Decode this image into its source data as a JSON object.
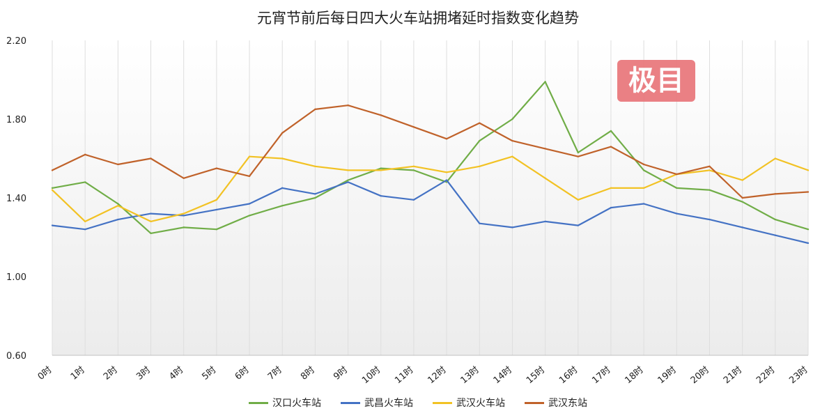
{
  "chart_data": {
    "type": "line",
    "title": "元宵节前后每日四大火车站拥堵延时指数变化趋势",
    "xlabel": "",
    "ylabel": "",
    "categories": [
      "0时",
      "1时",
      "2时",
      "3时",
      "4时",
      "5时",
      "6时",
      "7时",
      "8时",
      "9时",
      "10时",
      "11时",
      "12时",
      "13时",
      "14时",
      "15时",
      "16时",
      "17时",
      "18时",
      "19时",
      "20时",
      "21时",
      "22时",
      "23时"
    ],
    "ylim": [
      0.6,
      2.2
    ],
    "yticks": [
      "0.60",
      "1.00",
      "1.40",
      "1.80",
      "2.20"
    ],
    "grid": "vertical",
    "legend_position": "bottom",
    "series": [
      {
        "name": "汉口火车站",
        "color": "#70ad47",
        "values": [
          1.45,
          1.48,
          1.37,
          1.22,
          1.25,
          1.24,
          1.31,
          1.36,
          1.4,
          1.49,
          1.55,
          1.54,
          1.48,
          1.69,
          1.8,
          1.99,
          1.63,
          1.74,
          1.54,
          1.45,
          1.44,
          1.38,
          1.29,
          1.24
        ]
      },
      {
        "name": "武昌火车站",
        "color": "#4472c4",
        "values": [
          1.26,
          1.24,
          1.29,
          1.32,
          1.31,
          1.34,
          1.37,
          1.45,
          1.42,
          1.48,
          1.41,
          1.39,
          1.49,
          1.27,
          1.25,
          1.28,
          1.26,
          1.35,
          1.37,
          1.32,
          1.29,
          1.25,
          1.21,
          1.17
        ]
      },
      {
        "name": "武汉火车站",
        "color": "#f2c224",
        "values": [
          1.44,
          1.28,
          1.36,
          1.28,
          1.32,
          1.39,
          1.61,
          1.6,
          1.56,
          1.54,
          1.54,
          1.56,
          1.53,
          1.56,
          1.61,
          1.5,
          1.39,
          1.45,
          1.45,
          1.52,
          1.54,
          1.49,
          1.6,
          1.54
        ]
      },
      {
        "name": "武汉东站",
        "color": "#c0622a",
        "values": [
          1.54,
          1.62,
          1.57,
          1.6,
          1.5,
          1.55,
          1.51,
          1.73,
          1.85,
          1.87,
          1.82,
          1.76,
          1.7,
          1.78,
          1.69,
          1.65,
          1.61,
          1.66,
          1.57,
          1.52,
          1.56,
          1.4,
          1.42,
          1.43
        ]
      }
    ]
  },
  "watermark": {
    "text": "极目"
  }
}
